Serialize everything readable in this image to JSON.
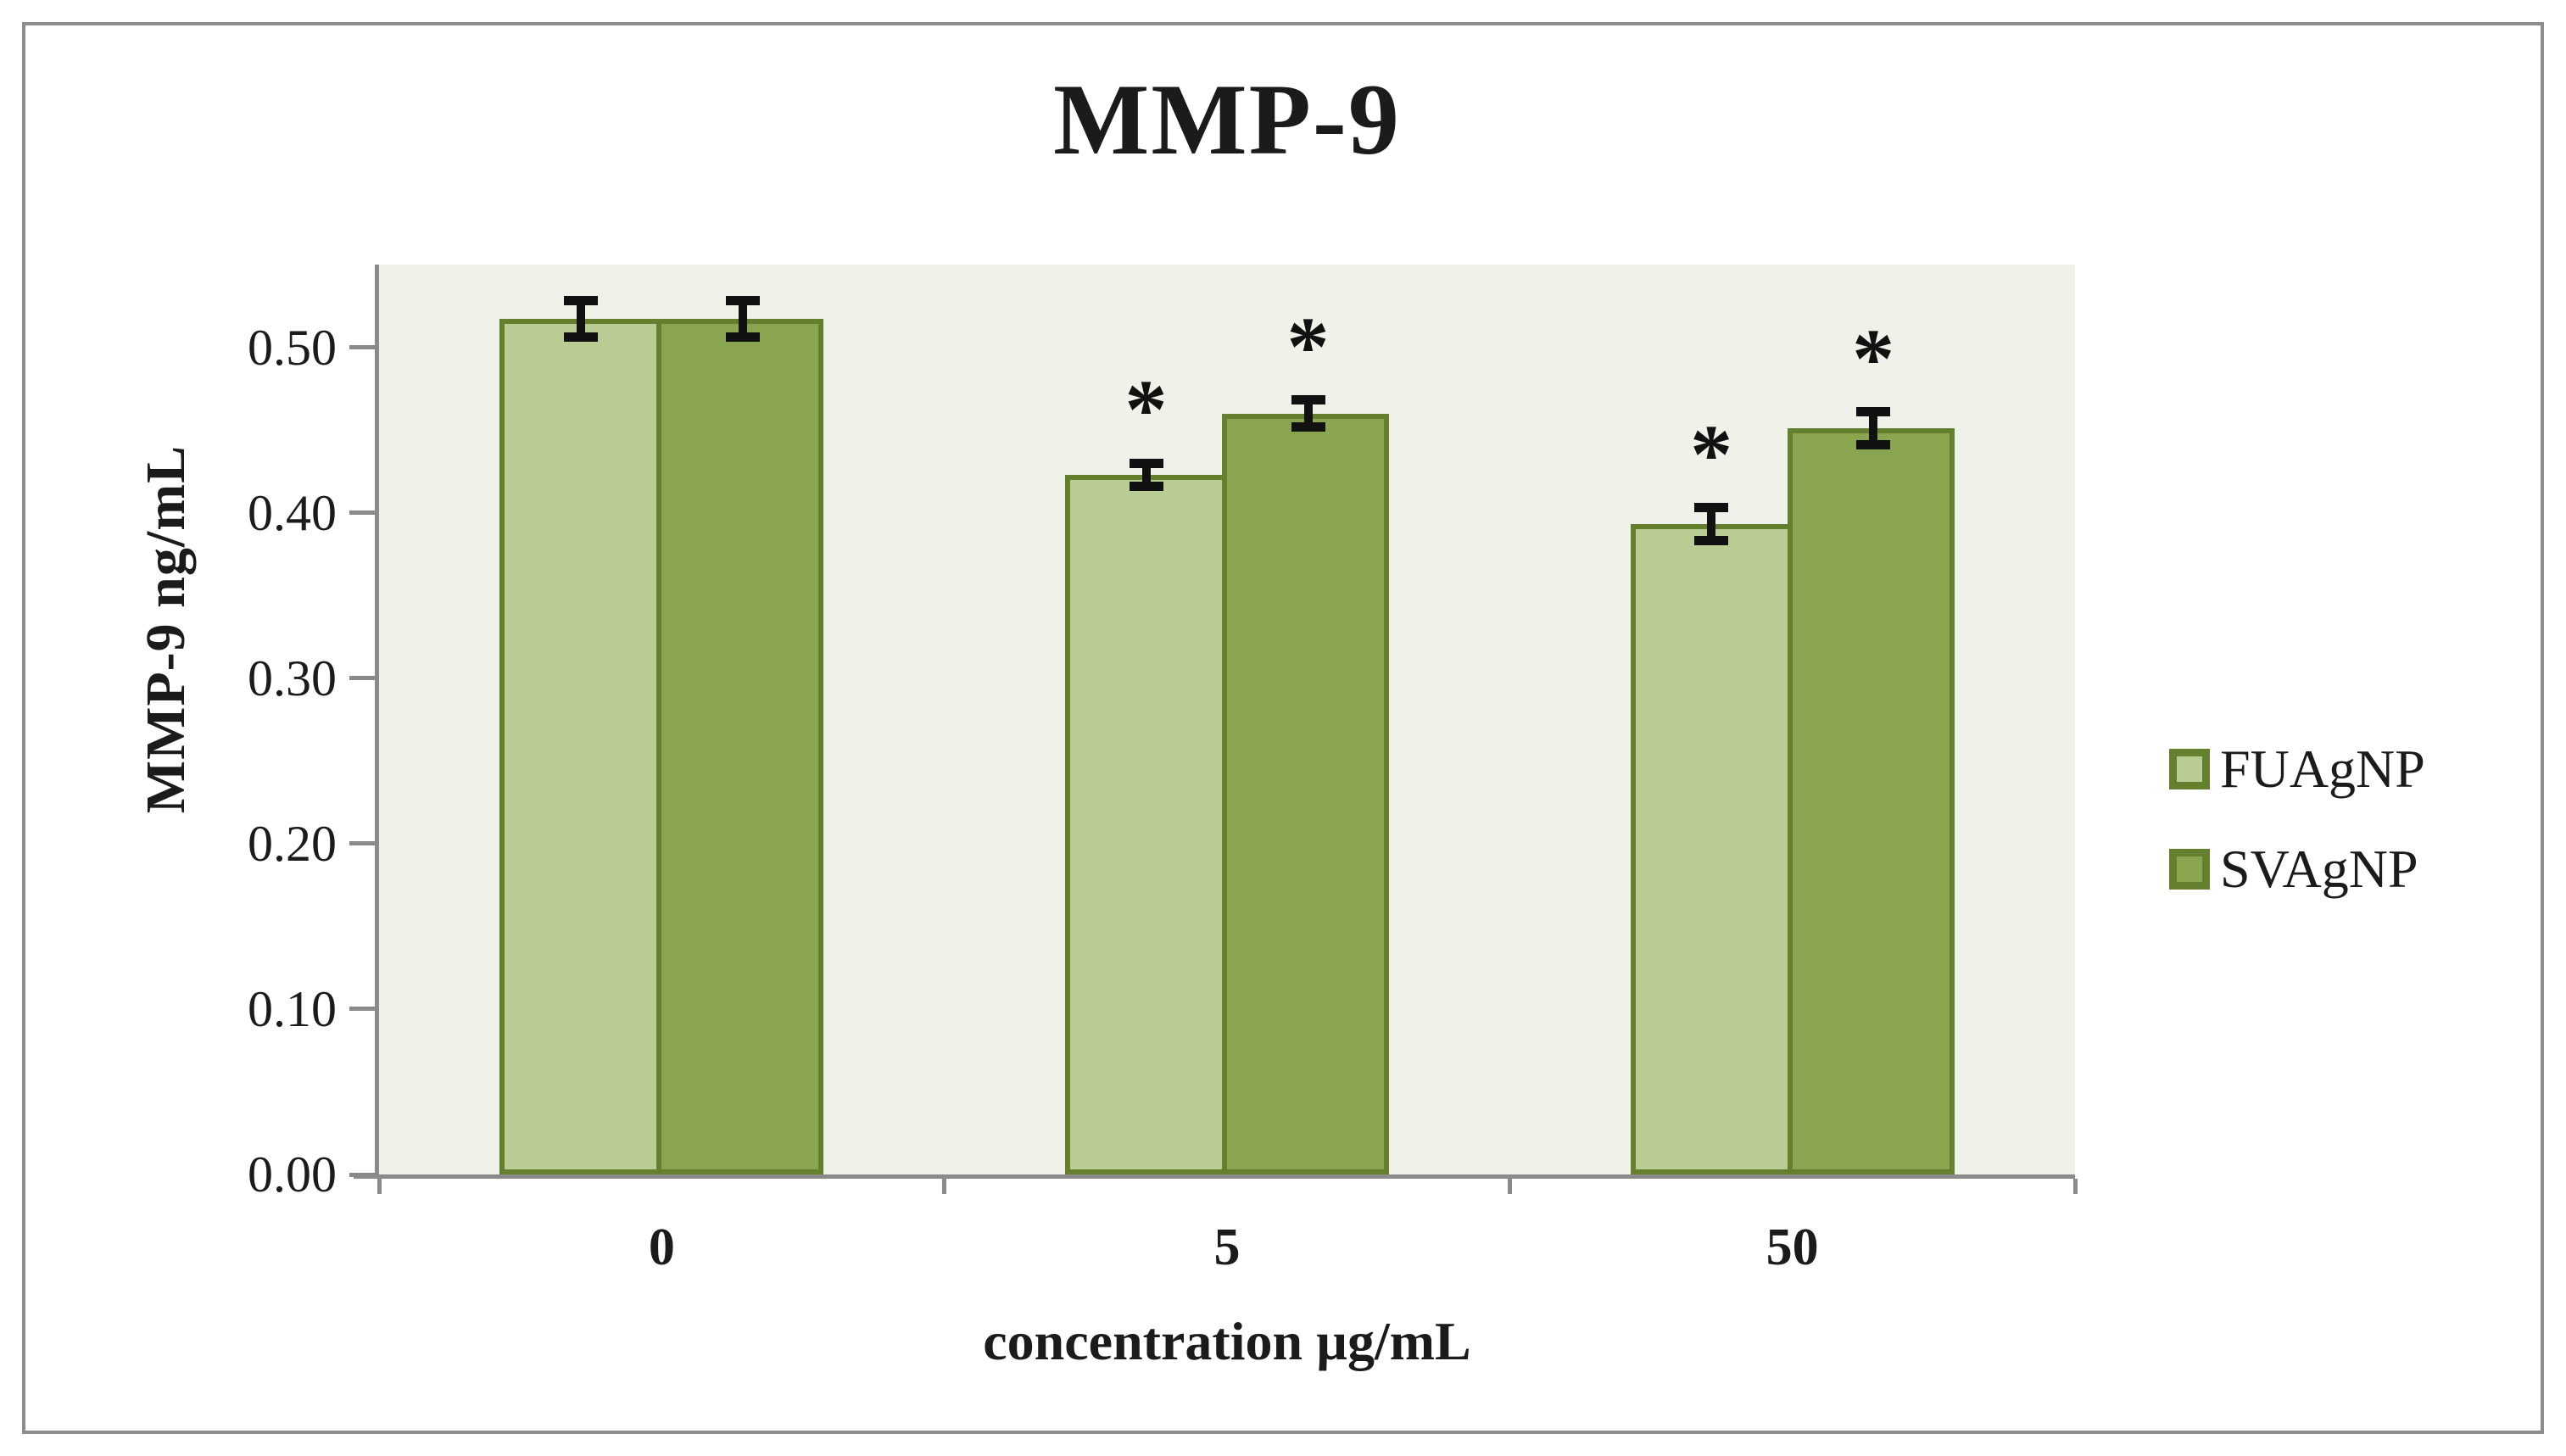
{
  "figure": {
    "title": "MMP-9",
    "y_axis_label": "MMP-9 ng/mL",
    "x_axis_label": "concentration µg/mL"
  },
  "chart_data": {
    "type": "bar",
    "title": "MMP-9",
    "xlabel": "concentration µg/mL",
    "ylabel": "MMP-9 ng/mL",
    "categories": [
      "0",
      "5",
      "50"
    ],
    "series": [
      {
        "name": "FUAgNP",
        "color": "#b8cc94",
        "values": [
          0.517,
          0.423,
          0.393
        ],
        "errors": [
          0.011,
          0.007,
          0.01
        ],
        "significant": [
          false,
          true,
          true
        ]
      },
      {
        "name": "SVAgNP",
        "color": "#8aa550",
        "values": [
          0.517,
          0.46,
          0.451
        ],
        "errors": [
          0.011,
          0.008,
          0.01
        ],
        "significant": [
          false,
          true,
          true
        ]
      }
    ],
    "yticks": [
      {
        "value": 0.0,
        "label": "0.00"
      },
      {
        "value": 0.1,
        "label": "0.10"
      },
      {
        "value": 0.2,
        "label": "0.20"
      },
      {
        "value": 0.3,
        "label": "0.30"
      },
      {
        "value": 0.4,
        "label": "0.40"
      },
      {
        "value": 0.5,
        "label": "0.50"
      }
    ],
    "ylim": [
      0,
      0.55
    ],
    "significance_marker": "*",
    "legend_position": "right",
    "grid": false,
    "appearance": {
      "plot_background": "#eff2e8",
      "bar_border_color": "#64802f",
      "axis_color": "#8a8a8a",
      "error_bar_color": "#111111",
      "figure_border_color": "#8d8d8d",
      "text_color": "#1b1b1b"
    }
  }
}
